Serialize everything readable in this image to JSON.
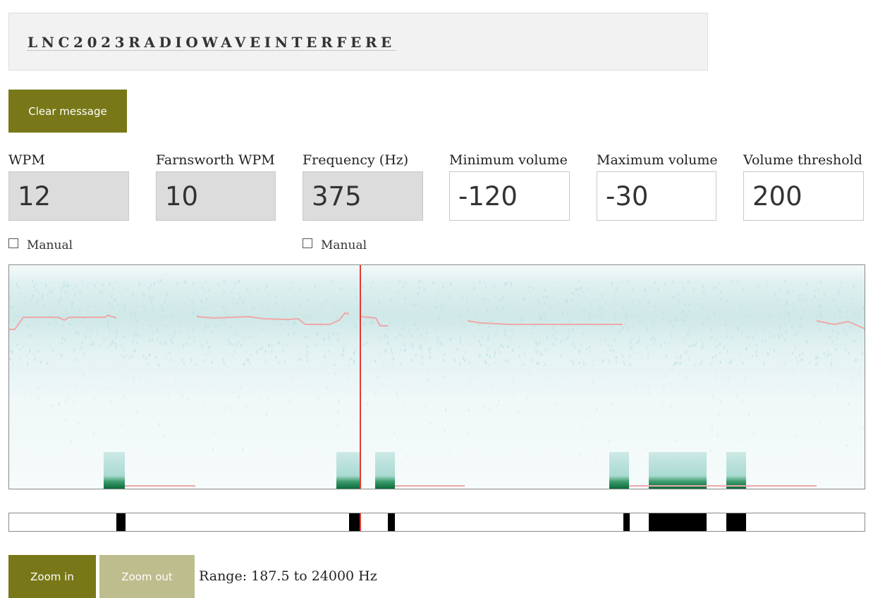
{
  "message": {
    "text": "LNC2023RADIOWAVEINTERFERE"
  },
  "buttons": {
    "clear": "Clear message",
    "zoom_in": "Zoom in",
    "zoom_out": "Zoom out"
  },
  "fields": {
    "wpm": {
      "label": "WPM",
      "value": "12"
    },
    "farnsworth": {
      "label": "Farnsworth WPM",
      "value": "10"
    },
    "frequency": {
      "label": "Frequency (Hz)",
      "value": "375"
    },
    "min_volume": {
      "label": "Minimum volume",
      "value": "-120"
    },
    "max_volume": {
      "label": "Maximum volume",
      "value": "-30"
    },
    "threshold": {
      "label": "Volume threshold",
      "value": "200"
    }
  },
  "manual": {
    "wpm_label": "Manual",
    "frequency_label": "Manual"
  },
  "range_text": "Range: 187.5 to 24000 Hz",
  "colors": {
    "accent": "#787818",
    "accent_light": "#bdbd8d",
    "cursor": "#e53935",
    "signal": "#0b6b3a"
  }
}
